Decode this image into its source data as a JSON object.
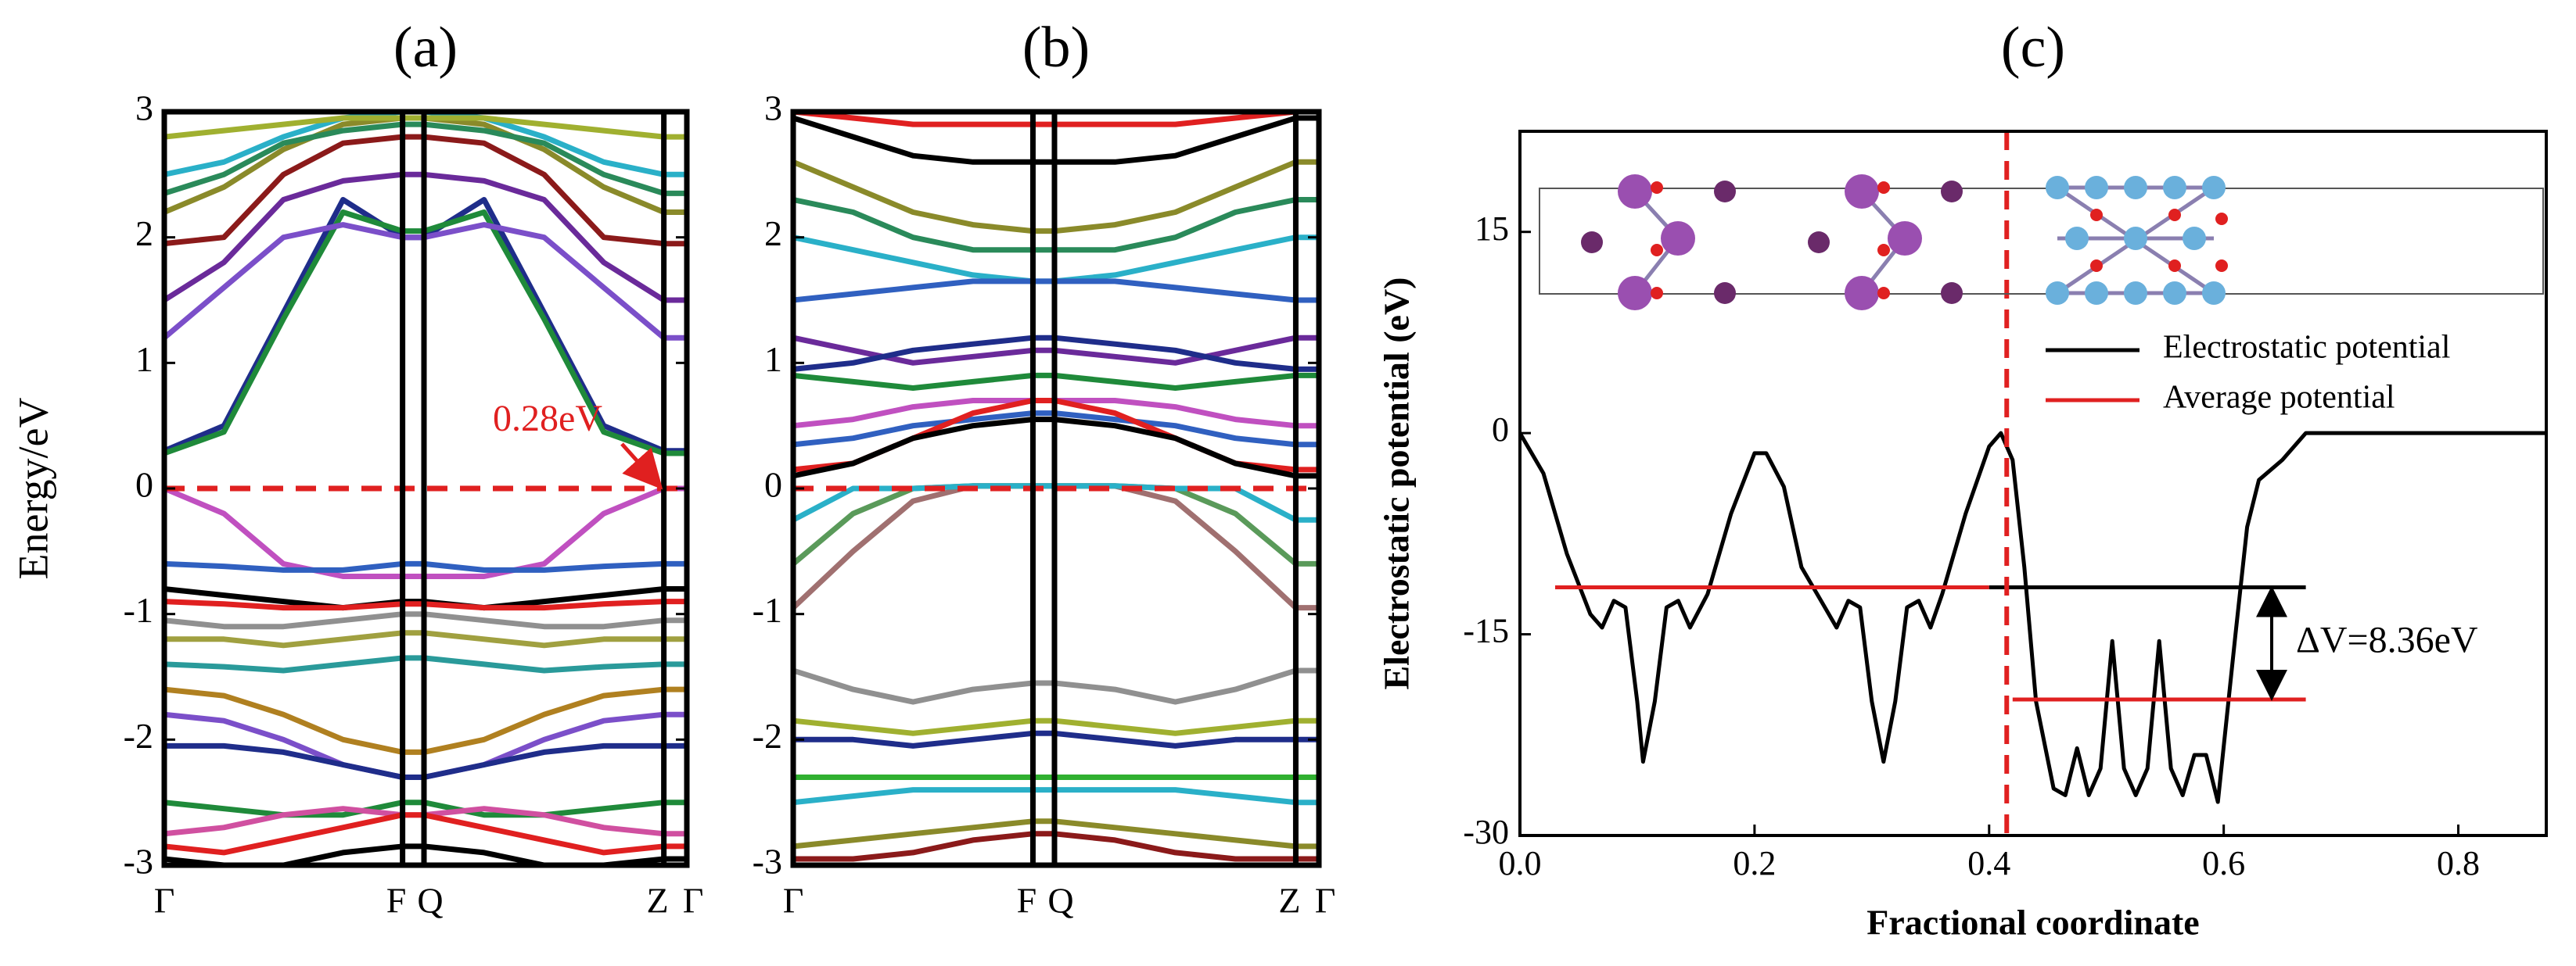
{
  "chart_data": [
    {
      "type": "line",
      "title": "(a)",
      "y_label": "Energy/eV",
      "x": [
        0,
        0.114,
        0.228,
        0.342,
        0.456,
        0.497,
        0.612,
        0.727,
        0.841,
        0.956,
        1
      ],
      "xlim": [
        0,
        1
      ],
      "ylim": [
        -3,
        3
      ],
      "xticks": [
        {
          "value": 0,
          "label": "Γ"
        },
        {
          "value": 0.456,
          "label": "F"
        },
        {
          "value": 0.497,
          "label": "Q"
        },
        {
          "value": 0.956,
          "label": "Z"
        },
        {
          "value": 1,
          "label": "Γ"
        }
      ],
      "yticks": [
        -3,
        -2,
        -1,
        0,
        1,
        2,
        3
      ],
      "fermi_level": 0,
      "annotation": "0.28eV",
      "series": [
        {
          "color": "#1f2d8a",
          "values": [
            0.3,
            0.5,
            1.4,
            2.3,
            2.0,
            2.0,
            2.3,
            1.4,
            0.5,
            0.3,
            0.3
          ]
        },
        {
          "color": "#1f8a3a",
          "values": [
            0.28,
            0.45,
            1.35,
            2.2,
            2.05,
            2.05,
            2.2,
            1.35,
            0.45,
            0.28,
            0.28
          ]
        },
        {
          "color": "#7b4fc9",
          "values": [
            1.2,
            1.6,
            2.0,
            2.1,
            2.0,
            2.0,
            2.1,
            2.0,
            1.6,
            1.2,
            1.2
          ]
        },
        {
          "color": "#6a2a9a",
          "values": [
            1.5,
            1.8,
            2.3,
            2.45,
            2.5,
            2.5,
            2.45,
            2.3,
            1.8,
            1.5,
            1.5
          ]
        },
        {
          "color": "#8b1a1a",
          "values": [
            1.95,
            2.0,
            2.5,
            2.75,
            2.8,
            2.8,
            2.75,
            2.5,
            2.0,
            1.95,
            1.95
          ]
        },
        {
          "color": "#8a8a2a",
          "values": [
            2.2,
            2.4,
            2.7,
            2.9,
            2.95,
            2.95,
            2.9,
            2.7,
            2.4,
            2.2,
            2.2
          ]
        },
        {
          "color": "#2ab0c8",
          "values": [
            2.5,
            2.6,
            2.8,
            2.95,
            3.0,
            3.0,
            2.95,
            2.8,
            2.6,
            2.5,
            2.5
          ]
        },
        {
          "color": "#a0b030",
          "values": [
            2.8,
            2.85,
            2.9,
            2.95,
            2.95,
            2.95,
            2.95,
            2.9,
            2.85,
            2.8,
            2.8
          ]
        },
        {
          "color": "#2a8a5a",
          "values": [
            2.35,
            2.5,
            2.75,
            2.85,
            2.9,
            2.9,
            2.85,
            2.75,
            2.5,
            2.35,
            2.35
          ]
        },
        {
          "color": "#c050c0",
          "values": [
            0,
            -0.2,
            -0.6,
            -0.7,
            -0.7,
            -0.7,
            -0.7,
            -0.6,
            -0.2,
            0,
            0
          ]
        },
        {
          "color": "#3060c0",
          "values": [
            -0.6,
            -0.62,
            -0.65,
            -0.65,
            -0.6,
            -0.6,
            -0.65,
            -0.65,
            -0.62,
            -0.6,
            -0.6
          ]
        },
        {
          "color": "#000000",
          "values": [
            -0.8,
            -0.85,
            -0.9,
            -0.95,
            -0.9,
            -0.9,
            -0.95,
            -0.9,
            -0.85,
            -0.8,
            -0.8
          ]
        },
        {
          "color": "#e02020",
          "values": [
            -0.9,
            -0.92,
            -0.95,
            -0.95,
            -0.92,
            -0.92,
            -0.95,
            -0.95,
            -0.92,
            -0.9,
            -0.9
          ]
        },
        {
          "color": "#909090",
          "values": [
            -1.05,
            -1.1,
            -1.1,
            -1.05,
            -1.0,
            -1.0,
            -1.05,
            -1.1,
            -1.1,
            -1.05,
            -1.05
          ]
        },
        {
          "color": "#a0a040",
          "values": [
            -1.2,
            -1.2,
            -1.25,
            -1.2,
            -1.15,
            -1.15,
            -1.2,
            -1.25,
            -1.2,
            -1.2,
            -1.2
          ]
        },
        {
          "color": "#2a9a9a",
          "values": [
            -1.4,
            -1.42,
            -1.45,
            -1.4,
            -1.35,
            -1.35,
            -1.4,
            -1.45,
            -1.42,
            -1.4,
            -1.4
          ]
        },
        {
          "color": "#b08020",
          "values": [
            -1.6,
            -1.65,
            -1.8,
            -2.0,
            -2.1,
            -2.1,
            -2.0,
            -1.8,
            -1.65,
            -1.6,
            -1.6
          ]
        },
        {
          "color": "#7b4fc9",
          "values": [
            -1.8,
            -1.85,
            -2.0,
            -2.2,
            -2.3,
            -2.3,
            -2.2,
            -2.0,
            -1.85,
            -1.8,
            -1.8
          ]
        },
        {
          "color": "#1f2d8a",
          "values": [
            -2.05,
            -2.05,
            -2.1,
            -2.2,
            -2.3,
            -2.3,
            -2.2,
            -2.1,
            -2.05,
            -2.05,
            -2.05
          ]
        },
        {
          "color": "#1f8a3a",
          "values": [
            -2.5,
            -2.55,
            -2.6,
            -2.6,
            -2.5,
            -2.5,
            -2.6,
            -2.6,
            -2.55,
            -2.5,
            -2.5
          ]
        },
        {
          "color": "#d050a0",
          "values": [
            -2.75,
            -2.7,
            -2.6,
            -2.55,
            -2.6,
            -2.6,
            -2.55,
            -2.6,
            -2.7,
            -2.75,
            -2.75
          ]
        },
        {
          "color": "#e02020",
          "values": [
            -2.85,
            -2.9,
            -2.8,
            -2.7,
            -2.6,
            -2.6,
            -2.7,
            -2.8,
            -2.9,
            -2.85,
            -2.85
          ]
        },
        {
          "color": "#000000",
          "values": [
            -2.95,
            -3.0,
            -3.0,
            -2.9,
            -2.85,
            -2.85,
            -2.9,
            -3.0,
            -3.0,
            -2.95,
            -2.95
          ]
        }
      ]
    },
    {
      "type": "line",
      "title": "(b)",
      "x": [
        0,
        0.114,
        0.228,
        0.342,
        0.456,
        0.497,
        0.612,
        0.727,
        0.841,
        0.956,
        1
      ],
      "xlim": [
        0,
        1
      ],
      "ylim": [
        -3,
        3
      ],
      "xticks": [
        {
          "value": 0,
          "label": "Γ"
        },
        {
          "value": 0.456,
          "label": "F"
        },
        {
          "value": 0.497,
          "label": "Q"
        },
        {
          "value": 0.956,
          "label": "Z"
        },
        {
          "value": 1,
          "label": "Γ"
        }
      ],
      "yticks": [
        -3,
        -2,
        -1,
        0,
        1,
        2,
        3
      ],
      "fermi_level": 0,
      "series": [
        {
          "color": "#000000",
          "values": [
            2.95,
            2.8,
            2.65,
            2.6,
            2.6,
            2.6,
            2.6,
            2.65,
            2.8,
            2.95,
            2.95
          ]
        },
        {
          "color": "#e02020",
          "values": [
            3.0,
            2.95,
            2.9,
            2.9,
            2.9,
            2.9,
            2.9,
            2.9,
            2.95,
            3.0,
            3.0
          ]
        },
        {
          "color": "#8a8a2a",
          "values": [
            2.6,
            2.4,
            2.2,
            2.1,
            2.05,
            2.05,
            2.1,
            2.2,
            2.4,
            2.6,
            2.6
          ]
        },
        {
          "color": "#2a8a5a",
          "values": [
            2.3,
            2.2,
            2.0,
            1.9,
            1.9,
            1.9,
            1.9,
            2.0,
            2.2,
            2.3,
            2.3
          ]
        },
        {
          "color": "#2ab0c8",
          "values": [
            2.0,
            1.9,
            1.8,
            1.7,
            1.65,
            1.65,
            1.7,
            1.8,
            1.9,
            2.0,
            2.0
          ]
        },
        {
          "color": "#3060c0",
          "values": [
            1.5,
            1.55,
            1.6,
            1.65,
            1.65,
            1.65,
            1.65,
            1.6,
            1.55,
            1.5,
            1.5
          ]
        },
        {
          "color": "#6a2a9a",
          "values": [
            1.2,
            1.1,
            1.0,
            1.05,
            1.1,
            1.1,
            1.05,
            1.0,
            1.1,
            1.2,
            1.2
          ]
        },
        {
          "color": "#1f2d8a",
          "values": [
            0.95,
            1.0,
            1.1,
            1.15,
            1.2,
            1.2,
            1.15,
            1.1,
            1.0,
            0.95,
            0.95
          ]
        },
        {
          "color": "#1f8a3a",
          "values": [
            0.9,
            0.85,
            0.8,
            0.85,
            0.9,
            0.9,
            0.85,
            0.8,
            0.85,
            0.9,
            0.9
          ]
        },
        {
          "color": "#c050c0",
          "values": [
            0.5,
            0.55,
            0.65,
            0.7,
            0.7,
            0.7,
            0.7,
            0.65,
            0.55,
            0.5,
            0.5
          ]
        },
        {
          "color": "#3060c0",
          "values": [
            0.35,
            0.4,
            0.5,
            0.55,
            0.6,
            0.6,
            0.55,
            0.5,
            0.4,
            0.35,
            0.35
          ]
        },
        {
          "color": "#e02020",
          "values": [
            0.15,
            0.2,
            0.4,
            0.6,
            0.7,
            0.7,
            0.6,
            0.4,
            0.2,
            0.15,
            0.15
          ]
        },
        {
          "color": "#000000",
          "values": [
            0.1,
            0.2,
            0.4,
            0.5,
            0.55,
            0.55,
            0.5,
            0.4,
            0.2,
            0.1,
            0.1
          ]
        },
        {
          "color": "#a07070",
          "values": [
            -0.95,
            -0.5,
            -0.1,
            0.02,
            0.02,
            0.02,
            0.02,
            -0.1,
            -0.5,
            -0.95,
            -0.95
          ]
        },
        {
          "color": "#5a9a5a",
          "values": [
            -0.6,
            -0.2,
            0.0,
            0.02,
            0.02,
            0.02,
            0.02,
            0.0,
            -0.2,
            -0.6,
            -0.6
          ]
        },
        {
          "color": "#2ab0c8",
          "values": [
            -0.25,
            0.0,
            0.0,
            0.02,
            0.02,
            0.02,
            0.02,
            0.0,
            0.0,
            -0.25,
            -0.25
          ]
        },
        {
          "color": "#909090",
          "values": [
            -1.45,
            -1.6,
            -1.7,
            -1.6,
            -1.55,
            -1.55,
            -1.6,
            -1.7,
            -1.6,
            -1.45,
            -1.45
          ]
        },
        {
          "color": "#a0b030",
          "values": [
            -1.85,
            -1.9,
            -1.95,
            -1.9,
            -1.85,
            -1.85,
            -1.9,
            -1.95,
            -1.9,
            -1.85,
            -1.85
          ]
        },
        {
          "color": "#1f2d8a",
          "values": [
            -2.0,
            -2.0,
            -2.05,
            -2.0,
            -1.95,
            -1.95,
            -2.0,
            -2.05,
            -2.0,
            -2.0,
            -2.0
          ]
        },
        {
          "color": "#30b030",
          "values": [
            -2.3,
            -2.3,
            -2.3,
            -2.3,
            -2.3,
            -2.3,
            -2.3,
            -2.3,
            -2.3,
            -2.3,
            -2.3
          ]
        },
        {
          "color": "#2ab0c8",
          "values": [
            -2.5,
            -2.45,
            -2.4,
            -2.4,
            -2.4,
            -2.4,
            -2.4,
            -2.4,
            -2.45,
            -2.5,
            -2.5
          ]
        },
        {
          "color": "#8a8a2a",
          "values": [
            -2.85,
            -2.8,
            -2.75,
            -2.7,
            -2.65,
            -2.65,
            -2.7,
            -2.75,
            -2.8,
            -2.85,
            -2.85
          ]
        },
        {
          "color": "#8b1a1a",
          "values": [
            -2.95,
            -2.95,
            -2.9,
            -2.8,
            -2.75,
            -2.75,
            -2.8,
            -2.9,
            -2.95,
            -2.95,
            -2.95
          ]
        }
      ]
    },
    {
      "type": "line",
      "title": "(c)",
      "y_label": "Electrostatic potential (eV)",
      "x_label": "Fractional coordinate",
      "xlim": [
        0,
        0.875
      ],
      "ylim": [
        -30,
        22.5
      ],
      "xticks": [
        {
          "value": 0,
          "label": "0.0"
        },
        0.2,
        0.4,
        0.6,
        0.8
      ],
      "yticks": [
        -30,
        -15,
        0,
        15
      ],
      "interface_x": 0.415,
      "annotation": "ΔV=8.36eV",
      "series": [
        {
          "name": "Electrostatic potential",
          "color": "#000000",
          "x": [
            0,
            0.02,
            0.04,
            0.06,
            0.07,
            0.08,
            0.09,
            0.1,
            0.105,
            0.115,
            0.125,
            0.135,
            0.145,
            0.16,
            0.18,
            0.2,
            0.21,
            0.225,
            0.24,
            0.26,
            0.27,
            0.28,
            0.29,
            0.3,
            0.31,
            0.32,
            0.33,
            0.34,
            0.35,
            0.36,
            0.38,
            0.4,
            0.41,
            0.42,
            0.43,
            0.44,
            0.455,
            0.465,
            0.475,
            0.485,
            0.495,
            0.505,
            0.515,
            0.525,
            0.535,
            0.545,
            0.555,
            0.565,
            0.575,
            0.585,
            0.595,
            0.61,
            0.62,
            0.63,
            0.65,
            0.67,
            0.875
          ],
          "values": [
            0,
            -3,
            -9,
            -13.5,
            -14.5,
            -12.5,
            -13,
            -20,
            -24.5,
            -20,
            -13,
            -12.5,
            -14.5,
            -12,
            -6,
            -1.5,
            -1.5,
            -4,
            -10,
            -13,
            -14.5,
            -12.5,
            -13,
            -20,
            -24.5,
            -20,
            -13,
            -12.5,
            -14.5,
            -12,
            -6,
            -1,
            0,
            -2,
            -10,
            -20,
            -26.5,
            -27,
            -23.5,
            -27,
            -25,
            -15.5,
            -25,
            -27,
            -25,
            -15.5,
            -25,
            -27,
            -24,
            -24,
            -27.5,
            -15,
            -7,
            -3.5,
            -2,
            0,
            0
          ]
        },
        {
          "name": "Average potential",
          "color": "#e02020",
          "x": [
            0.03,
            0.4
          ],
          "values": [
            -11.5,
            -11.5
          ]
        },
        {
          "color": "#000000",
          "x": [
            0.4,
            0.67
          ],
          "values": [
            -11.5,
            -11.5
          ]
        },
        {
          "color": "#e02020",
          "x": [
            0.42,
            0.67
          ],
          "values": [
            -19.86,
            -19.86
          ]
        }
      ]
    }
  ]
}
